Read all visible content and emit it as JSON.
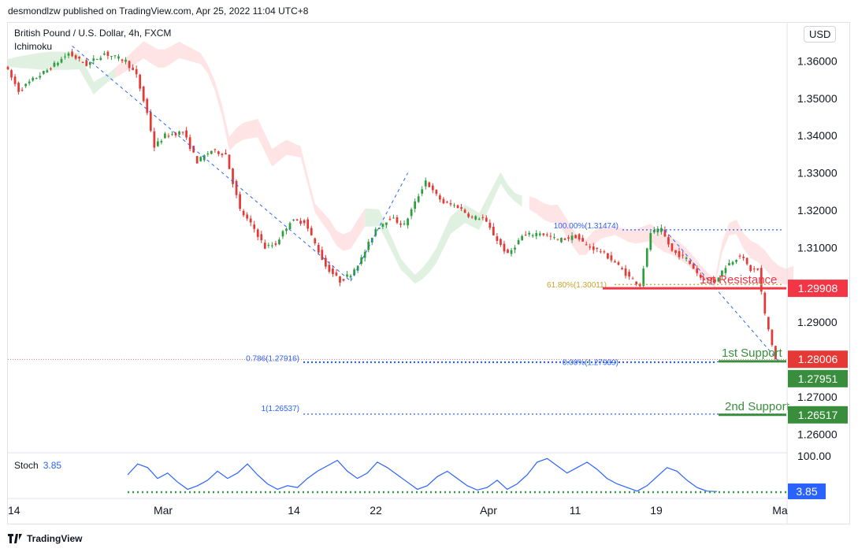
{
  "header": {
    "publisher_line": "desmondlzw published on TradingView.com, Apr 25, 2022 11:04 UTC+8"
  },
  "symbol": {
    "title": "British Pound / U.S. Dollar, 4h, FXCM",
    "indicator": "Ichimoku"
  },
  "currency_button": "USD",
  "footer": {
    "brand": "TradingView"
  },
  "colors": {
    "up": "#26a69a",
    "down": "#ef5350",
    "green_candle": "#2e9e3f",
    "red_candle": "#e53935",
    "resistance": "#f23645",
    "support": "#388e3c",
    "fib": "#2962ff",
    "fib_61": "#c9a227",
    "cloud_bull": "#c8e6c9",
    "cloud_bear": "#ffcdd2"
  },
  "chart_data": {
    "type": "candlestick",
    "title": "British Pound / U.S. Dollar, 4h, FXCM",
    "ylim": [
      1.255,
      1.37
    ],
    "y_ticks": [
      "1.36000",
      "1.35000",
      "1.34000",
      "1.33000",
      "1.32000",
      "1.31000",
      "1.29000",
      "1.27000",
      "1.26000"
    ],
    "x_ticks": [
      "14",
      "Mar",
      "14",
      "22",
      "Apr",
      "11",
      "19",
      "Ma"
    ],
    "price_path": [
      [
        0,
        1.359
      ],
      [
        4,
        1.352
      ],
      [
        8,
        1.355
      ],
      [
        12,
        1.3575
      ],
      [
        18,
        1.362
      ],
      [
        23,
        1.359
      ],
      [
        28,
        1.362
      ],
      [
        34,
        1.36
      ],
      [
        37,
        1.356
      ],
      [
        40,
        1.346
      ],
      [
        42,
        1.337
      ],
      [
        45,
        1.34
      ],
      [
        50,
        1.341
      ],
      [
        54,
        1.333
      ],
      [
        58,
        1.336
      ],
      [
        62,
        1.335
      ],
      [
        66,
        1.32
      ],
      [
        70,
        1.315
      ],
      [
        73,
        1.31
      ],
      [
        76,
        1.311
      ],
      [
        80,
        1.317
      ],
      [
        84,
        1.317
      ],
      [
        87,
        1.311
      ],
      [
        90,
        1.305
      ],
      [
        94,
        1.301
      ],
      [
        97,
        1.303
      ],
      [
        100,
        1.307
      ],
      [
        104,
        1.315
      ],
      [
        108,
        1.318
      ],
      [
        112,
        1.316
      ],
      [
        114,
        1.32
      ],
      [
        118,
        1.328
      ],
      [
        120,
        1.325
      ],
      [
        123,
        1.322
      ],
      [
        127,
        1.321
      ],
      [
        131,
        1.318
      ],
      [
        134,
        1.318
      ],
      [
        138,
        1.312
      ],
      [
        141,
        1.308
      ],
      [
        145,
        1.313
      ],
      [
        150,
        1.314
      ],
      [
        155,
        1.312
      ],
      [
        160,
        1.313
      ],
      [
        163,
        1.3105
      ],
      [
        167,
        1.309
      ],
      [
        171,
        1.306
      ],
      [
        175,
        1.302
      ],
      [
        178,
        1.3
      ],
      [
        181,
        1.314
      ],
      [
        184,
        1.3147
      ],
      [
        187,
        1.309
      ],
      [
        191,
        1.307
      ],
      [
        195,
        1.302
      ],
      [
        199,
        1.301
      ],
      [
        202,
        1.305
      ],
      [
        206,
        1.308
      ],
      [
        209,
        1.304
      ],
      [
        211,
        1.304
      ],
      [
        213,
        1.292
      ],
      [
        216,
        1.28
      ]
    ],
    "fib_levels": [
      {
        "label": "100.00%(1.31474)",
        "value": 1.31474
      },
      {
        "label": "61.80%(1.30011)",
        "value": 1.30011
      },
      {
        "label": "0.00%(1.27939)",
        "value": 1.27939
      },
      {
        "label": "0.786(1.27916)",
        "value": 1.27916
      },
      {
        "label": "1(1.26537)",
        "value": 1.26537
      }
    ],
    "levels": [
      {
        "name": "1st Resistance",
        "value": 1.29908,
        "badge": "1.29908",
        "kind": "resistance"
      },
      {
        "name": "1st Support",
        "value": 1.27951,
        "badge": "1.27951",
        "kind": "support"
      },
      {
        "name": "2nd Support",
        "value": 1.26517,
        "badge": "1.26517",
        "kind": "support"
      }
    ],
    "last_price": {
      "value": 1.28006,
      "badge": "1.28006"
    },
    "stochastic": {
      "label": "Stoch",
      "value": "3.85",
      "axis_label": "100.00",
      "series": [
        50,
        80,
        70,
        40,
        55,
        30,
        10,
        20,
        35,
        60,
        40,
        55,
        80,
        50,
        25,
        10,
        20,
        15,
        40,
        60,
        75,
        90,
        60,
        40,
        55,
        85,
        70,
        50,
        30,
        10,
        20,
        45,
        60,
        40,
        20,
        8,
        15,
        35,
        10,
        25,
        50,
        85,
        95,
        75,
        55,
        70,
        85,
        65,
        40,
        25,
        15,
        5,
        20,
        45,
        70,
        60,
        35,
        15,
        5,
        4
      ]
    }
  }
}
